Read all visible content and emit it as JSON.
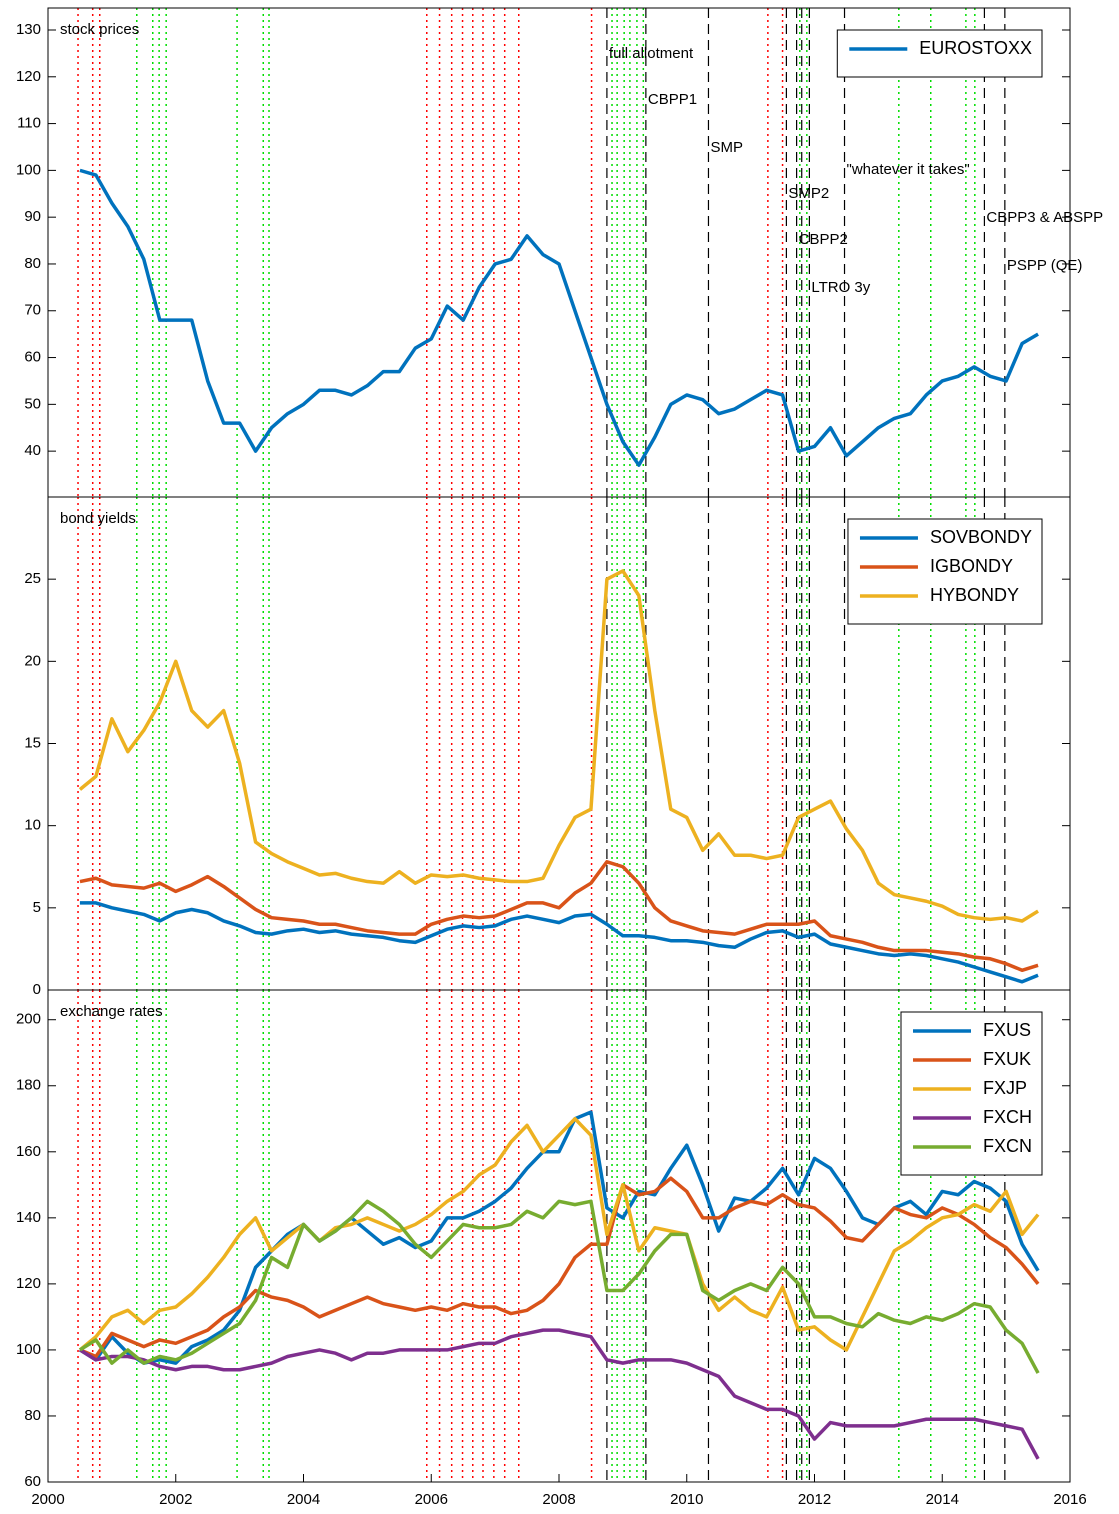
{
  "event_lines": {
    "red": {
      "color": "#ff0000",
      "dates": [
        2000.47,
        2000.7,
        2000.81,
        2005.93,
        2006.13,
        2006.32,
        2006.49,
        2006.65,
        2006.81,
        2006.98,
        2007.15,
        2007.37,
        2008.51,
        2011.27,
        2011.5
      ]
    },
    "green": {
      "color": "#00dd00",
      "dates": [
        2001.39,
        2001.64,
        2001.74,
        2001.85,
        2002.96,
        2003.37,
        2003.46,
        2008.83,
        2008.91,
        2009.02,
        2009.11,
        2009.22,
        2009.32,
        2011.77,
        2011.88,
        2013.32,
        2013.82,
        2014.37,
        2014.51
      ]
    },
    "black": {
      "color": "#000000",
      "dates": [
        2008.75,
        2009.36,
        2010.34,
        2011.56,
        2011.72,
        2011.8,
        2011.92,
        2012.47,
        2014.66,
        2014.98
      ]
    }
  },
  "events": [
    {
      "date": 2008.75,
      "label": "full allotment"
    },
    {
      "date": 2009.36,
      "label": "CBPP1"
    },
    {
      "date": 2010.34,
      "label": "SMP"
    },
    {
      "date": 2011.56,
      "label": "SMP2"
    },
    {
      "date": 2011.72,
      "label": "CBPP2"
    },
    {
      "date": 2011.92,
      "label": "LTRO 3y"
    },
    {
      "date": 2012.47,
      "label": "\"whatever it takes\""
    },
    {
      "date": 2014.66,
      "label": "CBPP3 & ABSPP"
    },
    {
      "date": 2014.98,
      "label": "PSPP (QE)"
    }
  ],
  "chart_data": [
    {
      "type": "line",
      "title": "stock prices",
      "legend": "upper right",
      "x": [
        2000.5,
        2000.75,
        2001,
        2001.25,
        2001.5,
        2001.75,
        2002,
        2002.25,
        2002.5,
        2002.75,
        2003,
        2003.25,
        2003.5,
        2003.75,
        2004,
        2004.25,
        2004.5,
        2004.75,
        2005,
        2005.25,
        2005.5,
        2005.75,
        2006,
        2006.25,
        2006.5,
        2006.75,
        2007,
        2007.25,
        2007.5,
        2007.75,
        2008,
        2008.25,
        2008.5,
        2008.75,
        2009,
        2009.25,
        2009.5,
        2009.75,
        2010,
        2010.25,
        2010.5,
        2010.75,
        2011,
        2011.25,
        2011.5,
        2011.75,
        2012,
        2012.25,
        2012.5,
        2012.75,
        2013,
        2013.25,
        2013.5,
        2013.75,
        2014,
        2014.25,
        2014.5,
        2014.75,
        2015,
        2015.25,
        2015.5
      ],
      "xlim": [
        2000,
        2016
      ],
      "ylim": [
        30.2,
        134.7
      ],
      "yticks": [
        40,
        50,
        60,
        70,
        80,
        90,
        100,
        110,
        120,
        130
      ],
      "series": [
        {
          "name": "EUROSTOXX",
          "color": "#0072bd",
          "values": [
            100,
            99,
            93,
            88,
            81,
            68,
            68,
            68,
            55,
            46,
            46,
            40,
            45,
            48,
            50,
            53,
            53,
            52,
            54,
            57,
            57,
            62,
            64,
            71,
            68,
            75,
            80,
            81,
            86,
            82,
            80,
            70,
            60,
            50,
            42,
            37,
            43,
            50,
            52,
            51,
            48,
            49,
            51,
            53,
            52,
            40,
            41,
            45,
            39,
            42,
            45,
            47,
            48,
            52,
            55,
            56,
            58,
            56,
            55,
            63,
            65
          ]
        }
      ]
    },
    {
      "type": "line",
      "title": "bond yields",
      "legend": "upper right",
      "x": [
        2000.5,
        2000.75,
        2001,
        2001.25,
        2001.5,
        2001.75,
        2002,
        2002.25,
        2002.5,
        2002.75,
        2003,
        2003.25,
        2003.5,
        2003.75,
        2004,
        2004.25,
        2004.5,
        2004.75,
        2005,
        2005.25,
        2005.5,
        2005.75,
        2006,
        2006.25,
        2006.5,
        2006.75,
        2007,
        2007.25,
        2007.5,
        2007.75,
        2008,
        2008.25,
        2008.5,
        2008.75,
        2009,
        2009.25,
        2009.5,
        2009.75,
        2010,
        2010.25,
        2010.5,
        2010.75,
        2011,
        2011.25,
        2011.5,
        2011.75,
        2012,
        2012.25,
        2012.5,
        2012.75,
        2013,
        2013.25,
        2013.5,
        2013.75,
        2014,
        2014.25,
        2014.5,
        2014.75,
        2015,
        2015.25,
        2015.5
      ],
      "xlim": [
        2000,
        2016
      ],
      "ylim": [
        0,
        30
      ],
      "yticks": [
        0,
        5,
        10,
        15,
        20,
        25
      ],
      "series": [
        {
          "name": "SOVBONDY",
          "color": "#0072bd",
          "values": [
            5.3,
            5.3,
            5.0,
            4.8,
            4.6,
            4.2,
            4.7,
            4.9,
            4.7,
            4.2,
            3.9,
            3.5,
            3.4,
            3.6,
            3.7,
            3.5,
            3.6,
            3.4,
            3.3,
            3.2,
            3.0,
            2.9,
            3.3,
            3.7,
            3.9,
            3.8,
            3.9,
            4.3,
            4.5,
            4.3,
            4.1,
            4.5,
            4.6,
            4.0,
            3.3,
            3.3,
            3.2,
            3.0,
            3.0,
            2.9,
            2.7,
            2.6,
            3.1,
            3.5,
            3.6,
            3.2,
            3.4,
            2.8,
            2.6,
            2.4,
            2.2,
            2.1,
            2.2,
            2.1,
            1.9,
            1.7,
            1.4,
            1.1,
            0.8,
            0.5,
            0.9
          ]
        },
        {
          "name": "IGBONDY",
          "color": "#d95319",
          "values": [
            6.6,
            6.8,
            6.4,
            6.3,
            6.2,
            6.5,
            6.0,
            6.4,
            6.9,
            6.3,
            5.6,
            4.9,
            4.4,
            4.3,
            4.2,
            4.0,
            4.0,
            3.8,
            3.6,
            3.5,
            3.4,
            3.4,
            4.0,
            4.3,
            4.5,
            4.4,
            4.5,
            4.9,
            5.3,
            5.3,
            5.0,
            5.9,
            6.5,
            7.8,
            7.5,
            6.5,
            5.0,
            4.2,
            3.9,
            3.6,
            3.5,
            3.4,
            3.7,
            4.0,
            4.0,
            4.0,
            4.2,
            3.3,
            3.1,
            2.9,
            2.6,
            2.4,
            2.4,
            2.4,
            2.3,
            2.2,
            2.0,
            1.9,
            1.6,
            1.2,
            1.5
          ]
        },
        {
          "name": "HYBONDY",
          "color": "#edb120",
          "values": [
            12.2,
            13.0,
            16.5,
            14.5,
            15.8,
            17.5,
            20.0,
            17.0,
            16.0,
            17.0,
            13.8,
            9.0,
            8.3,
            7.8,
            7.4,
            7.0,
            7.1,
            6.8,
            6.6,
            6.5,
            7.2,
            6.5,
            7.0,
            6.9,
            7.0,
            6.8,
            6.7,
            6.6,
            6.6,
            6.8,
            8.8,
            10.5,
            11.0,
            25.0,
            25.5,
            24.0,
            17.0,
            11.0,
            10.5,
            8.5,
            9.5,
            8.2,
            8.2,
            8.0,
            8.2,
            10.5,
            11.0,
            11.5,
            9.8,
            8.5,
            6.5,
            5.8,
            5.6,
            5.4,
            5.1,
            4.6,
            4.4,
            4.3,
            4.4,
            4.2,
            4.8
          ]
        }
      ]
    },
    {
      "type": "line",
      "title": "exchange rates",
      "legend": "upper right",
      "x": [
        2000.5,
        2000.75,
        2001,
        2001.25,
        2001.5,
        2001.75,
        2002,
        2002.25,
        2002.5,
        2002.75,
        2003,
        2003.25,
        2003.5,
        2003.75,
        2004,
        2004.25,
        2004.5,
        2004.75,
        2005,
        2005.25,
        2005.5,
        2005.75,
        2006,
        2006.25,
        2006.5,
        2006.75,
        2007,
        2007.25,
        2007.5,
        2007.75,
        2008,
        2008.25,
        2008.5,
        2008.75,
        2009,
        2009.25,
        2009.5,
        2009.75,
        2010,
        2010.25,
        2010.5,
        2010.75,
        2011,
        2011.25,
        2011.5,
        2011.75,
        2012,
        2012.25,
        2012.5,
        2012.75,
        2013,
        2013.25,
        2013.5,
        2013.75,
        2014,
        2014.25,
        2014.5,
        2014.75,
        2015,
        2015.25,
        2015.5
      ],
      "xlim": [
        2000,
        2016
      ],
      "xticks": [
        2000,
        2002,
        2004,
        2006,
        2008,
        2010,
        2012,
        2014,
        2016
      ],
      "ylim": [
        60,
        209
      ],
      "yticks": [
        60,
        80,
        100,
        120,
        140,
        160,
        180,
        200
      ],
      "series": [
        {
          "name": "FXUS",
          "color": "#0072bd",
          "values": [
            100,
            97,
            104,
            99,
            96,
            97,
            96,
            101,
            103,
            106,
            112,
            125,
            130,
            135,
            138,
            133,
            136,
            140,
            136,
            132,
            134,
            131,
            133,
            140,
            140,
            142,
            145,
            149,
            155,
            160,
            160,
            170,
            172,
            143,
            140,
            148,
            147,
            155,
            162,
            150,
            136,
            146,
            145,
            149,
            155,
            147,
            158,
            155,
            148,
            140,
            138,
            143,
            145,
            141,
            148,
            147,
            151,
            149,
            145,
            132,
            124
          ]
        },
        {
          "name": "FXUK",
          "color": "#d95319",
          "values": [
            100,
            98,
            105,
            103,
            101,
            103,
            102,
            104,
            106,
            110,
            113,
            118,
            116,
            115,
            113,
            110,
            112,
            114,
            116,
            114,
            113,
            112,
            113,
            112,
            114,
            113,
            113,
            111,
            112,
            115,
            120,
            128,
            132,
            132,
            150,
            147,
            148,
            152,
            148,
            140,
            140,
            143,
            145,
            144,
            147,
            144,
            143,
            139,
            134,
            133,
            138,
            143,
            141,
            140,
            143,
            141,
            138,
            134,
            131,
            126,
            120
          ]
        },
        {
          "name": "FXJP",
          "color": "#edb120",
          "values": [
            100,
            104,
            110,
            112,
            108,
            112,
            113,
            117,
            122,
            128,
            135,
            140,
            130,
            134,
            138,
            133,
            137,
            138,
            140,
            138,
            136,
            138,
            141,
            145,
            148,
            153,
            156,
            163,
            168,
            160,
            165,
            170,
            165,
            135,
            150,
            130,
            137,
            136,
            135,
            120,
            112,
            116,
            112,
            110,
            119,
            106,
            107,
            103,
            100,
            110,
            120,
            130,
            133,
            137,
            140,
            141,
            144,
            142,
            148,
            135,
            141
          ]
        },
        {
          "name": "FXCH",
          "color": "#7e2f8e",
          "values": [
            100,
            97,
            98,
            98,
            97,
            95,
            94,
            95,
            95,
            94,
            94,
            95,
            96,
            98,
            99,
            100,
            99,
            97,
            99,
            99,
            100,
            100,
            100,
            100,
            101,
            102,
            102,
            104,
            105,
            106,
            106,
            105,
            104,
            97,
            96,
            97,
            97,
            97,
            96,
            94,
            92,
            86,
            84,
            82,
            82,
            80,
            73,
            78,
            77,
            77,
            77,
            77,
            78,
            79,
            79,
            79,
            79,
            78,
            77,
            76,
            67
          ]
        },
        {
          "name": "FXCN",
          "color": "#77ac30",
          "values": [
            100,
            103,
            96,
            100,
            96,
            98,
            97,
            99,
            102,
            105,
            108,
            115,
            128,
            125,
            138,
            133,
            136,
            140,
            145,
            142,
            138,
            132,
            128,
            133,
            138,
            137,
            137,
            138,
            142,
            140,
            145,
            144,
            145,
            118,
            118,
            123,
            130,
            135,
            135,
            118,
            115,
            118,
            120,
            118,
            125,
            120,
            110,
            110,
            108,
            107,
            111,
            109,
            108,
            110,
            109,
            111,
            114,
            113,
            106,
            102,
            93
          ]
        }
      ]
    }
  ]
}
